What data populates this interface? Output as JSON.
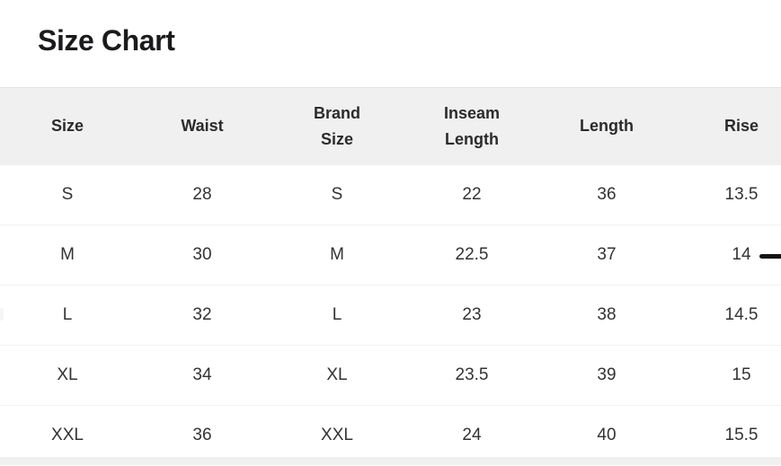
{
  "page": {
    "title": "Size Chart"
  },
  "table": {
    "columns": [
      "Size",
      "Waist",
      "Brand Size",
      "Inseam Length",
      "Length",
      "Rise"
    ],
    "rows": [
      [
        "S",
        "28",
        "S",
        "22",
        "36",
        "13.5"
      ],
      [
        "M",
        "30",
        "M",
        "22.5",
        "37",
        "14"
      ],
      [
        "L",
        "32",
        "L",
        "23",
        "38",
        "14.5"
      ],
      [
        "XL",
        "34",
        "XL",
        "23.5",
        "39",
        "15"
      ],
      [
        "XXL",
        "36",
        "XXL",
        "24",
        "40",
        "15.5"
      ]
    ]
  },
  "colors": {
    "title_text": "#1b1b1d",
    "header_bg": "#f0f0f0",
    "header_text": "#2b2b2b",
    "cell_text": "#333333",
    "row_divider": "#f2f2f2",
    "dash_indicator": "#141414"
  }
}
